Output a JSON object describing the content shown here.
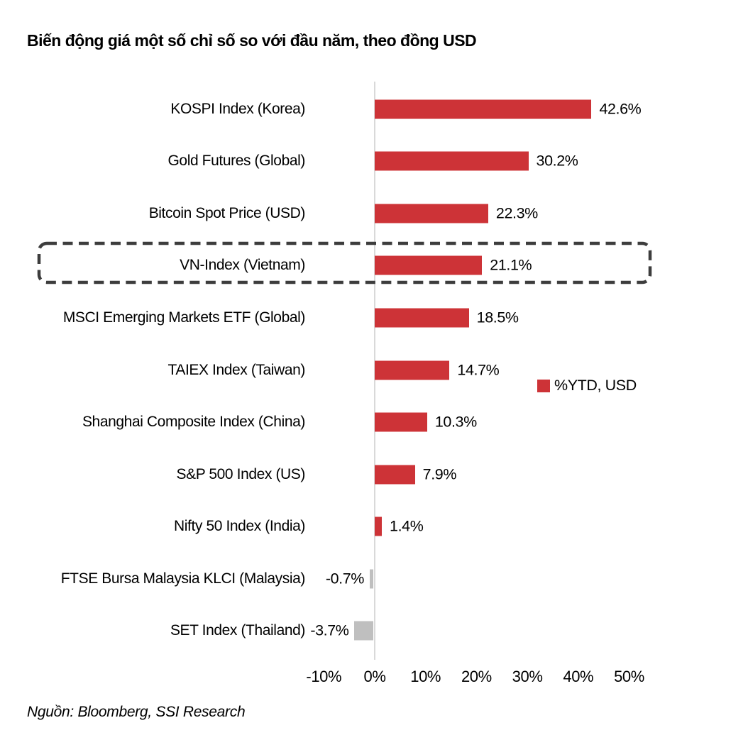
{
  "title": "Biến động giá một số chỉ số so với đầu năm, theo đồng USD",
  "source": "Nguồn: Bloomberg, SSI Research",
  "legend": {
    "label": "%YTD, USD",
    "color": "#CD3337"
  },
  "chart_data": {
    "type": "bar",
    "orientation": "horizontal",
    "title": "Biến động giá một số chỉ số so với đầu năm, theo đồng USD",
    "categories": [
      "KOSPI Index (Korea)",
      "Gold Futures (Global)",
      "Bitcoin Spot Price (USD)",
      "VN-Index (Vietnam)",
      "MSCI Emerging Markets ETF (Global)",
      "TAIEX Index (Taiwan)",
      "Shanghai Composite Index (China)",
      "S&P 500 Index (US)",
      "Nifty 50 Index (India)",
      "FTSE Bursa Malaysia KLCI (Malaysia)",
      "SET Index (Thailand)"
    ],
    "values": [
      42.6,
      30.2,
      22.3,
      21.1,
      18.5,
      14.7,
      10.3,
      7.9,
      1.4,
      -0.7,
      -3.7
    ],
    "value_labels": [
      "42.6%",
      "30.2%",
      "22.3%",
      "21.1%",
      "18.5%",
      "14.7%",
      "10.3%",
      "7.9%",
      "1.4%",
      "-0.7%",
      "-3.7%"
    ],
    "series_name": "%YTD, USD",
    "highlight_category": "VN-Index (Vietnam)",
    "x_tick_values": [
      -10,
      0,
      10,
      20,
      30,
      40,
      50
    ],
    "x_tick_labels": [
      "-10%",
      "0%",
      "10%",
      "20%",
      "30%",
      "40%",
      "50%"
    ],
    "xlim": [
      -10,
      50
    ],
    "grid": false,
    "legend_position": "middle-right",
    "positive_color": "#CD3337",
    "negative_color": "#BFBFBF",
    "axis_line_color": "#D9D9D9",
    "highlight_border_color": "#3D3D3D"
  }
}
